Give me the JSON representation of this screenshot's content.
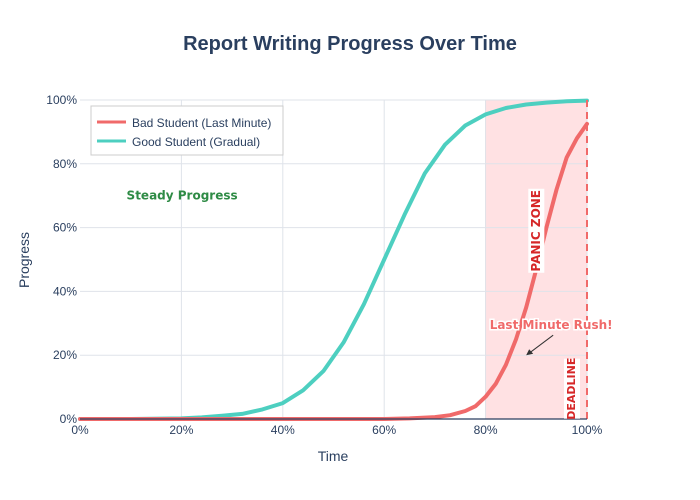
{
  "chart_data": {
    "type": "line",
    "title": "Report Writing Progress Over Time",
    "xlabel": "Time",
    "ylabel": "Progress",
    "xlim": [
      0,
      100
    ],
    "ylim": [
      0,
      100
    ],
    "x_tick_labels": [
      "0%",
      "20%",
      "40%",
      "60%",
      "80%",
      "100%"
    ],
    "y_tick_labels": [
      "0%",
      "20%",
      "40%",
      "60%",
      "80%",
      "100%"
    ],
    "grid": true,
    "legend_position": "top-left",
    "series": [
      {
        "name": "Bad Student (Last Minute)",
        "color": "#f06a6a",
        "x": [
          0,
          10,
          20,
          30,
          40,
          50,
          60,
          65,
          70,
          73,
          76,
          78,
          80,
          82,
          84,
          86,
          88,
          90,
          92,
          94,
          96,
          98,
          100
        ],
        "y": [
          0,
          0,
          0,
          0,
          0,
          0,
          0,
          0.2,
          0.6,
          1.2,
          2.5,
          4,
          7,
          11,
          17,
          25,
          35,
          47,
          60,
          72,
          82,
          88,
          92.5
        ]
      },
      {
        "name": "Good Student (Gradual)",
        "color": "#4dcfc0",
        "x": [
          0,
          10,
          20,
          24,
          28,
          32,
          36,
          40,
          44,
          48,
          52,
          56,
          60,
          64,
          68,
          72,
          76,
          80,
          84,
          88,
          92,
          96,
          100
        ],
        "y": [
          0,
          0,
          0.2,
          0.5,
          1,
          1.6,
          3,
          5,
          9,
          15,
          24,
          36,
          50,
          64,
          77,
          86,
          92,
          95.5,
          97.5,
          98.6,
          99.2,
          99.6,
          99.8
        ]
      }
    ],
    "shaded_region": {
      "x": [
        80,
        100
      ],
      "label": "PANIC ZONE",
      "color": "#ffc9cc"
    },
    "deadline": {
      "x": 100,
      "label": "DEADLINE",
      "color": "#f06a6a"
    },
    "annotations": [
      {
        "text": "Steady Progress",
        "x": 30,
        "y": 70,
        "color": "#2e8b45"
      },
      {
        "text": "Last Minute Rush!",
        "x": 88,
        "y": 20,
        "color": "#f06a6a"
      }
    ]
  }
}
